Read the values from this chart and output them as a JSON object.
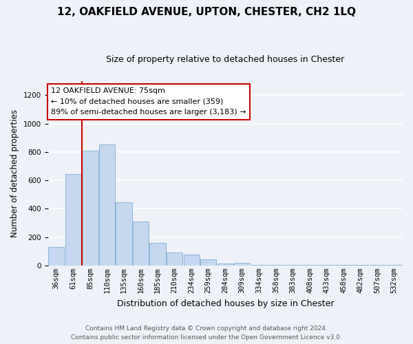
{
  "title": "12, OAKFIELD AVENUE, UPTON, CHESTER, CH2 1LQ",
  "subtitle": "Size of property relative to detached houses in Chester",
  "xlabel": "Distribution of detached houses by size in Chester",
  "ylabel": "Number of detached properties",
  "bar_color": "#c5d8f0",
  "bar_edge_color": "#8ab4d8",
  "categories": [
    "36sqm",
    "61sqm",
    "85sqm",
    "110sqm",
    "135sqm",
    "160sqm",
    "185sqm",
    "210sqm",
    "234sqm",
    "259sqm",
    "284sqm",
    "309sqm",
    "334sqm",
    "358sqm",
    "383sqm",
    "408sqm",
    "433sqm",
    "458sqm",
    "482sqm",
    "507sqm",
    "532sqm"
  ],
  "values": [
    130,
    645,
    810,
    855,
    445,
    308,
    158,
    92,
    75,
    42,
    15,
    20,
    5,
    5,
    3,
    2,
    2,
    2,
    2,
    2,
    5
  ],
  "ylim": [
    0,
    1300
  ],
  "yticks": [
    0,
    200,
    400,
    600,
    800,
    1000,
    1200
  ],
  "red_line_x": 1.5,
  "property_line_label": "12 OAKFIELD AVENUE: 75sqm",
  "annotation_line1": "← 10% of detached houses are smaller (359)",
  "annotation_line2": "89% of semi-detached houses are larger (3,183) →",
  "footer_line1": "Contains HM Land Registry data © Crown copyright and database right 2024.",
  "footer_line2": "Contains public sector information licensed under the Open Government Licence v3.0.",
  "background_color": "#eef2f8",
  "plot_bg_color": "#eef2f8",
  "grid_color": "#ffffff",
  "annotation_box_facecolor": "#ffffff",
  "annotation_box_edgecolor": "#cc0000",
  "red_line_color": "#cc0000",
  "title_fontsize": 11,
  "subtitle_fontsize": 9,
  "xlabel_fontsize": 9,
  "ylabel_fontsize": 8.5,
  "tick_fontsize": 7.5,
  "footer_fontsize": 6.5,
  "annot_fontsize": 8
}
